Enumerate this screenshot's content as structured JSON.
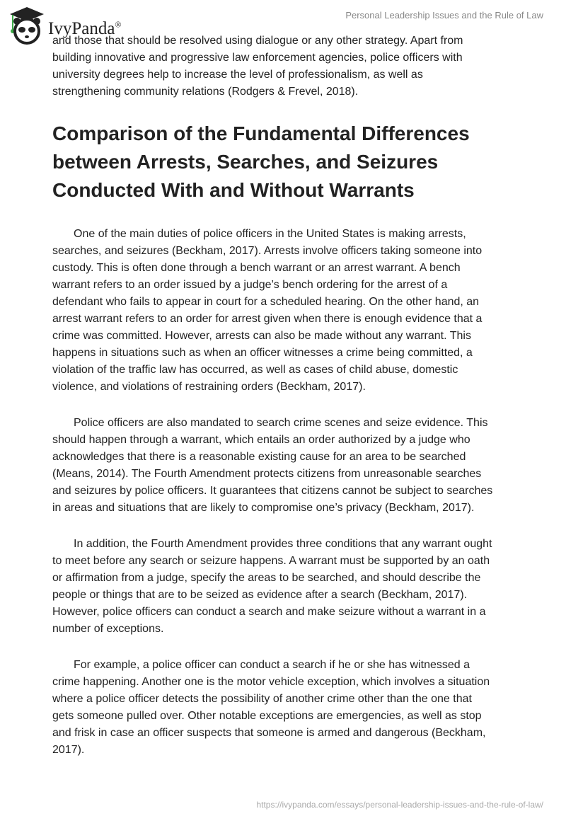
{
  "header": {
    "logo_text": "IvyPanda",
    "logo_mark": "®",
    "doc_title": "Personal Leadership Issues and the Rule of Law"
  },
  "paragraphs_before": [
    [
      "and those that should be resolved using dialogue or any other strategy. Apart from",
      "building innovative and progressive law enforcement agencies, police officers with",
      "university degrees help to increase the level of professionalism, as well as",
      "strengthening community relations (Rodgers & Frevel, 2018)."
    ]
  ],
  "section": {
    "heading": [
      "Comparison of the Fundamental Differences",
      "between Arrests, Searches, and Seizures",
      "Conducted With and Without Warrants"
    ],
    "paragraphs": [
      [
        "One of the main duties of police officers in the United States is making arrests,",
        "searches, and seizures (Beckham, 2017). Arrests involve officers taking someone into",
        "custody. This is often done through a bench warrant or an arrest warrant. A bench",
        "warrant refers to an order issued by a judge’s bench ordering for the arrest of a",
        "defendant who fails to appear in court for a scheduled hearing. On the other hand, an",
        "arrest warrant refers to an order for arrest given when there is enough evidence that a",
        "crime was committed. However, arrests can also be made without any warrant. This",
        "happens in situations such as when an officer witnesses a crime being committed, a",
        "violation of the traffic law has occurred, as well as cases of child abuse, domestic",
        "violence, and violations of restraining orders (Beckham, 2017)."
      ],
      [
        "Police officers are also mandated to search crime scenes and seize evidence. This",
        "should happen through a warrant, which entails an order authorized by a judge who",
        "acknowledges that there is a reasonable existing cause for an area to be searched",
        "(Means, 2014). The Fourth Amendment protects citizens from unreasonable searches",
        "and seizures by police officers. It guarantees that citizens cannot be subject to searches",
        "in areas and situations that are likely to compromise one’s privacy (Beckham, 2017)."
      ],
      [
        "In addition, the Fourth Amendment provides three conditions that any warrant ought",
        "to meet before any search or seizure happens. A warrant must be supported by an oath",
        "or affirmation from a judge, specify the areas to be searched, and should describe the",
        "people or things that are to be seized as evidence after a search (Beckham, 2017).",
        "However, police officers can conduct a search and make seizure without a warrant in a",
        "number of exceptions."
      ],
      [
        "For example, a police officer can conduct a search if he or she has witnessed a",
        "crime happening. Another one is the motor vehicle exception, which involves a situation",
        "where a police officer detects the possibility of another crime other than the one that",
        "gets someone pulled over. Other notable exceptions are emergencies, as well as stop",
        "and frisk in case an officer suspects that someone is armed and dangerous (Beckham,",
        "2017)."
      ]
    ]
  },
  "footer": {
    "url": "https://ivypanda.com/essays/personal-leadership-issues-and-the-rule-of-law/"
  },
  "colors": {
    "text": "#222222",
    "muted": "#888888",
    "logo_green": "#3aa845"
  }
}
